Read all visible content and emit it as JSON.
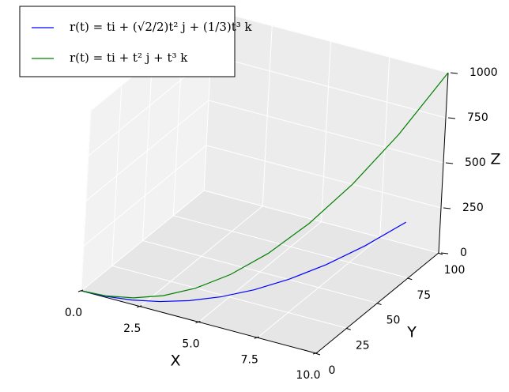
{
  "chart_data": {
    "type": "line3d",
    "series": [
      {
        "name": "r(t) = ti + (√2/2)t² j + (1/3)t³ k",
        "color": "#0000ff",
        "x": [
          0,
          1,
          2,
          3,
          4,
          5,
          6,
          7,
          8,
          9,
          10
        ],
        "y": [
          0,
          0.71,
          2.83,
          6.36,
          11.31,
          17.68,
          25.46,
          34.65,
          45.25,
          57.28,
          70.71
        ],
        "z": [
          0,
          0.33,
          2.67,
          9,
          21.33,
          41.67,
          72,
          114.33,
          170.67,
          243,
          333.33
        ]
      },
      {
        "name": "r(t) = ti + t² j + t³ k",
        "color": "#008000",
        "x": [
          0,
          1,
          2,
          3,
          4,
          5,
          6,
          7,
          8,
          9,
          10
        ],
        "y": [
          0,
          1,
          4,
          9,
          16,
          25,
          36,
          49,
          64,
          81,
          100
        ],
        "z": [
          0,
          1,
          8,
          27,
          64,
          125,
          216,
          343,
          512,
          729,
          1000
        ]
      }
    ],
    "xlabel": "X",
    "ylabel": "Y",
    "zlabel": "Z",
    "xlim": [
      0,
      10
    ],
    "ylim": [
      0,
      100
    ],
    "zlim": [
      0,
      1000
    ],
    "xticks": [
      {
        "value": 0,
        "label": "0.0"
      },
      {
        "value": 2.5,
        "label": "2.5"
      },
      {
        "value": 5,
        "label": "5.0"
      },
      {
        "value": 7.5,
        "label": "7.5"
      },
      {
        "value": 10,
        "label": "10.0"
      }
    ],
    "yticks": [
      0,
      25,
      50,
      75,
      100
    ],
    "zticks": [
      0,
      250,
      500,
      750,
      1000
    ],
    "grid": true,
    "legend": "upper left"
  }
}
